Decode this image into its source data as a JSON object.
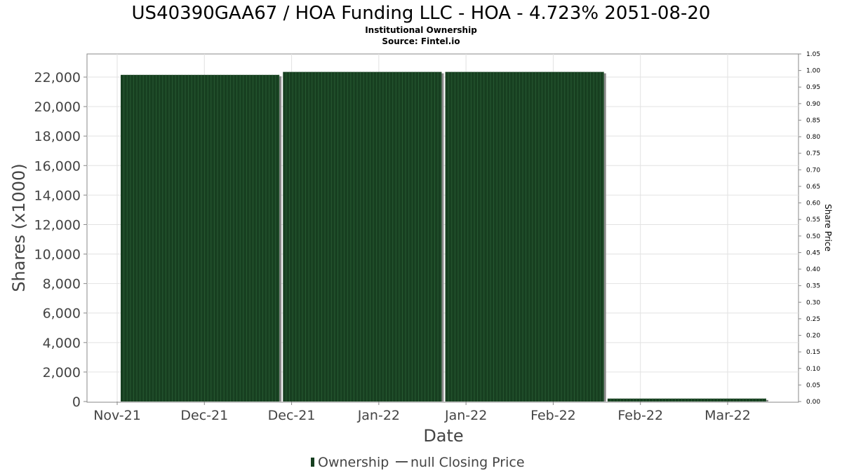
{
  "chart_data": {
    "type": "bar",
    "title": "US40390GAA67 / HOA Funding LLC - HOA - 4.723% 2051-08-20",
    "subtitle_lines": [
      "Institutional Ownership",
      "Source: Fintel.io"
    ],
    "xlabel": "Date",
    "ylabel": "Shares (x1000)",
    "y2label": "Share Price",
    "x_tick_labels": [
      "Nov-21",
      "Dec-21",
      "Dec-21",
      "Jan-22",
      "Jan-22",
      "Feb-22",
      "Feb-22",
      "Mar-22"
    ],
    "ylim": [
      0,
      23000
    ],
    "y_ticks": [
      0,
      2000,
      4000,
      6000,
      8000,
      10000,
      12000,
      14000,
      16000,
      18000,
      20000,
      22000
    ],
    "y_tick_labels": [
      "0",
      "2,000",
      "4,000",
      "6,000",
      "8,000",
      "10,000",
      "12,000",
      "14,000",
      "16,000",
      "18,000",
      "20,000",
      "22,000"
    ],
    "y2lim": [
      0,
      1.05
    ],
    "y2_tick_labels": [
      "0.00",
      "0.05",
      "0.10",
      "0.15",
      "0.20",
      "0.25",
      "0.30",
      "0.35",
      "0.40",
      "0.45",
      "0.50",
      "0.55",
      "0.60",
      "0.65",
      "0.70",
      "0.75",
      "0.80",
      "0.85",
      "0.90",
      "0.95",
      "1.00",
      "1.05"
    ],
    "grid": true,
    "series": [
      {
        "name": "Ownership",
        "color": "#173f20",
        "bars": [
          {
            "start": "2021-11-17",
            "end": "2021-12-31",
            "value": 22150
          },
          {
            "start": "2022-01-01",
            "end": "2022-02-14",
            "value": 22350
          },
          {
            "start": "2022-02-15",
            "end": "2022-03-31",
            "value": 22350
          },
          {
            "start": "2022-04-01",
            "end": "2022-05-15",
            "value": 200
          }
        ]
      },
      {
        "name": "null Closing Price",
        "color": "#555555",
        "values": []
      }
    ],
    "legend": {
      "position": "bottom",
      "items": [
        "Ownership",
        "null Closing Price"
      ]
    }
  }
}
